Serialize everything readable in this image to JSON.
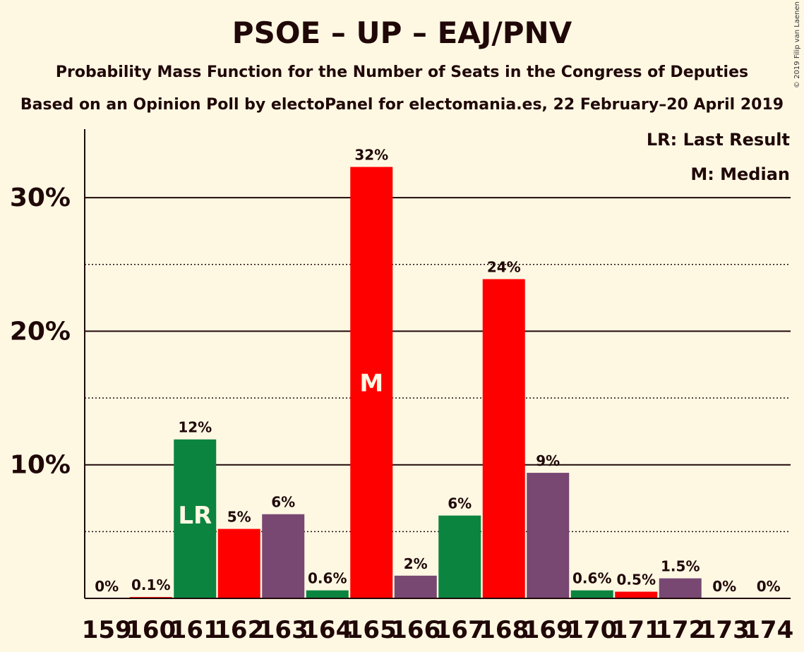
{
  "chart_data": {
    "type": "bar",
    "title": "PSOE – UP – EAJ/PNV",
    "subtitle": "Probability Mass Function for the Number of Seats in the Congress of Deputies",
    "source": "Based on an Opinion Poll by electoPanel for electomania.es, 22 February–20 April 2019",
    "copyright": "© 2019 Filip van Laenen",
    "legend": {
      "last_result": "LR: Last Result",
      "median": "M: Median"
    },
    "categories": [
      "159",
      "160",
      "161",
      "162",
      "163",
      "164",
      "165",
      "166",
      "167",
      "168",
      "169",
      "170",
      "171",
      "172",
      "173",
      "174"
    ],
    "values": [
      0,
      0.1,
      11.9,
      5.2,
      6.3,
      0.6,
      32.3,
      1.7,
      6.2,
      23.9,
      9.4,
      0.6,
      0.5,
      1.5,
      0,
      0
    ],
    "labels": [
      "0%",
      "0.1%",
      "12%",
      "5%",
      "6%",
      "0.6%",
      "32%",
      "2%",
      "6%",
      "24%",
      "9%",
      "0.6%",
      "0.5%",
      "1.5%",
      "0%",
      "0%"
    ],
    "colors": [
      "#0B843F",
      "#FF0000",
      "#0B843F",
      "#FF0000",
      "#784772",
      "#0B843F",
      "#FF0000",
      "#784772",
      "#0B843F",
      "#FF0000",
      "#784772",
      "#0B843F",
      "#FF0000",
      "#784772",
      "#0B843F",
      "#FF0000"
    ],
    "markers": {
      "161": "LR",
      "165": "M"
    },
    "ylim": [
      0,
      35
    ],
    "yticks_major": [
      10,
      20,
      30
    ],
    "yticks_minor": [
      5,
      15,
      25
    ],
    "ytick_labels": [
      "10%",
      "20%",
      "30%"
    ],
    "xlabel": "",
    "ylabel": "",
    "grid": true,
    "legend_position": "top-right"
  }
}
